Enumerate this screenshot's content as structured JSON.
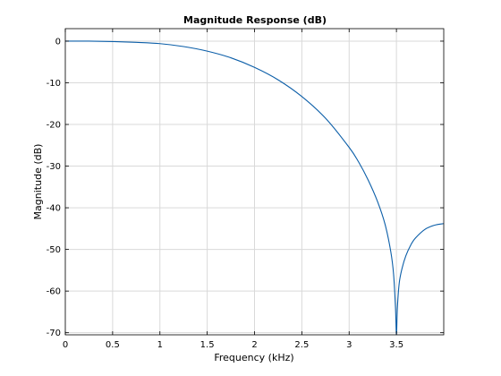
{
  "chart_data": {
    "type": "line",
    "title": "Magnitude Response (dB)",
    "xlabel": "Frequency (kHz)",
    "ylabel": "Magnitude (dB)",
    "xlim": [
      0,
      4
    ],
    "ylim": [
      -70.5,
      3
    ],
    "xticks": [
      0,
      0.5,
      1,
      1.5,
      2,
      2.5,
      3,
      3.5
    ],
    "xtick_labels": [
      "0",
      "0.5",
      "1",
      "1.5",
      "2",
      "2.5",
      "3",
      "3.5"
    ],
    "yticks": [
      0,
      -10,
      -20,
      -30,
      -40,
      -50,
      -60,
      -70
    ],
    "ytick_labels": [
      "0",
      "-10",
      "-20",
      "-30",
      "-40",
      "-50",
      "-60",
      "-70"
    ],
    "grid": true,
    "series": [
      {
        "x": [
          0,
          0.25,
          0.5,
          0.75,
          1.0,
          1.25,
          1.5,
          1.75,
          2.0,
          2.25,
          2.5,
          2.75,
          3.0,
          3.1,
          3.2,
          3.3,
          3.38,
          3.44,
          3.47,
          3.49,
          3.5,
          3.51,
          3.53,
          3.56,
          3.6,
          3.65,
          3.7,
          3.8,
          3.9,
          4.0
        ],
        "y": [
          0,
          0,
          -0.1,
          -0.3,
          -0.6,
          -1.3,
          -2.4,
          -4.0,
          -6.3,
          -9.3,
          -13.3,
          -18.5,
          -25.5,
          -29.0,
          -33.3,
          -38.5,
          -44.0,
          -50.5,
          -56.0,
          -64.0,
          -70.5,
          -64.0,
          -58.0,
          -54.5,
          -51.5,
          -49.0,
          -47.3,
          -45.2,
          -44.2,
          -43.8
        ],
        "color": "#0b5ea8"
      }
    ]
  }
}
